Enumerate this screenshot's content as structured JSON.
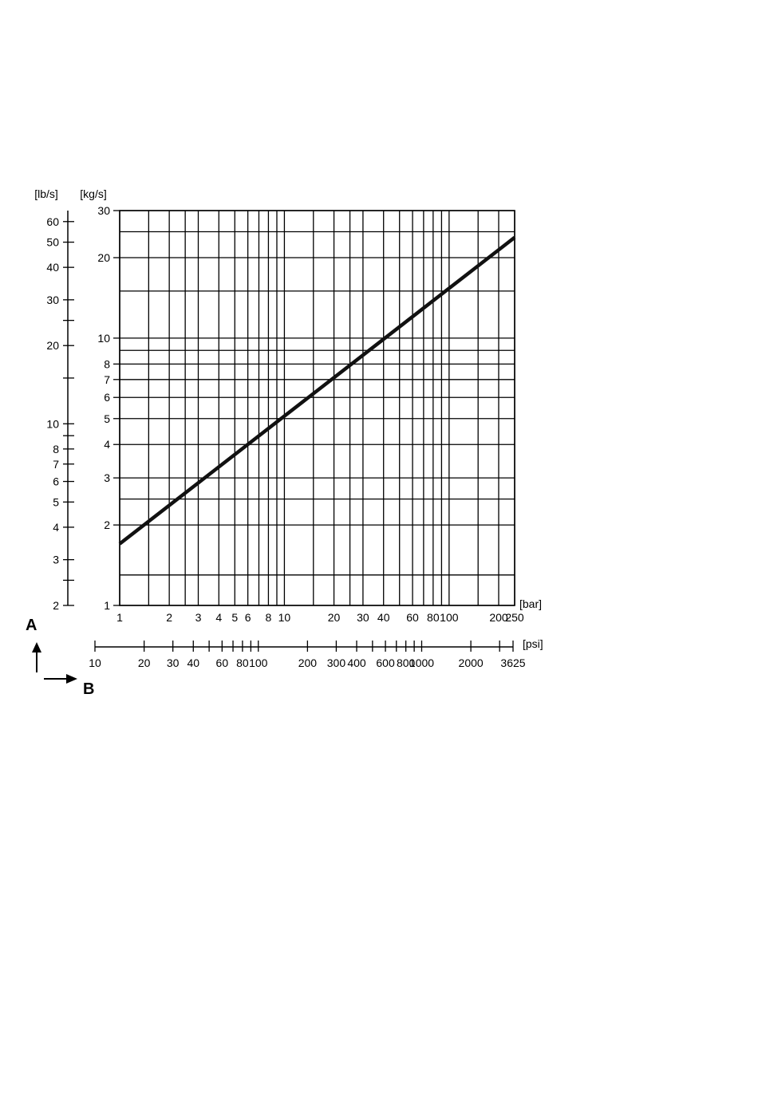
{
  "chart_data": {
    "type": "line",
    "title": "",
    "x_scale": "log",
    "y_scale": "log",
    "grid": true,
    "y_axis": {
      "unit": "[kg/s]",
      "range": [
        1,
        30
      ],
      "ticks": [
        1,
        2,
        3,
        4,
        5,
        6,
        7,
        8,
        10,
        20,
        30
      ],
      "tick_labels": [
        "1",
        "2",
        "3",
        "4",
        "5",
        "6",
        "7",
        "8",
        "10",
        "20",
        "30"
      ],
      "gridlines": [
        1,
        1.3,
        2,
        2.5,
        3,
        4,
        5,
        6,
        7,
        8,
        9,
        10,
        15,
        20,
        25,
        30
      ]
    },
    "y2_axis": {
      "unit": "[lb/s]",
      "range": [
        2,
        66.14
      ],
      "ticks": [
        2,
        2.5,
        3,
        4,
        5,
        6,
        7,
        8,
        9,
        10,
        15,
        20,
        25,
        30,
        40,
        50,
        60
      ],
      "tick_labels": [
        "2",
        "",
        "3",
        "4",
        "5",
        "6",
        "7",
        "8",
        "",
        "10",
        "",
        "20",
        "",
        "30",
        "40",
        "50",
        "60"
      ]
    },
    "x_axis": {
      "unit": "[bar]",
      "range": [
        1,
        250
      ],
      "ticks": [
        1,
        2,
        3,
        4,
        5,
        6,
        8,
        10,
        20,
        30,
        40,
        60,
        80,
        100,
        200,
        250
      ],
      "tick_labels": [
        "1",
        "2",
        "3",
        "4",
        "5",
        "6",
        "8",
        "10",
        "20",
        "30",
        "40",
        "60",
        "80",
        "100",
        "200",
        "250"
      ],
      "gridlines": [
        1,
        1.5,
        2,
        2.5,
        3,
        4,
        5,
        6,
        7,
        8,
        9,
        10,
        15,
        20,
        25,
        30,
        40,
        50,
        60,
        70,
        80,
        90,
        100,
        150,
        200,
        250
      ]
    },
    "x2_axis": {
      "unit": "[psi]",
      "range": [
        10,
        3625
      ],
      "ticks": [
        10,
        20,
        30,
        40,
        50,
        60,
        70,
        80,
        90,
        100,
        200,
        300,
        400,
        500,
        600,
        700,
        800,
        900,
        1000,
        2000,
        3000,
        3625
      ],
      "tick_labels": [
        "10",
        "20",
        "30",
        "40",
        "",
        "60",
        "",
        "80",
        "",
        "100",
        "200",
        "300",
        "400",
        "",
        "600",
        "",
        "800",
        "",
        "1000",
        "2000",
        "",
        "3625"
      ]
    },
    "series": [
      {
        "x": [
          1,
          250
        ],
        "y": [
          1.7,
          23.8
        ]
      }
    ],
    "annotations": {
      "a": "A",
      "b": "B"
    }
  }
}
